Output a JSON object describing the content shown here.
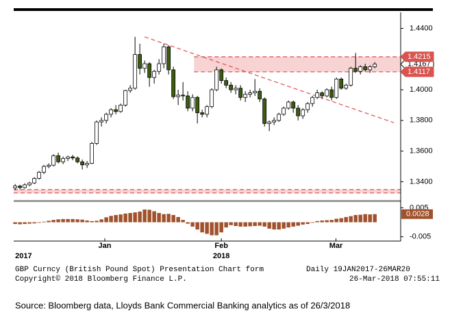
{
  "chart_data": {
    "type": "candlestick",
    "title": "GBP Curncy (British Pound Spot) Presentation Chart form",
    "subtitle": "Daily 19JAN2017-26MAR20",
    "copyright": "Copyright© 2018 Bloomberg Finance L.P.",
    "timestamp": "26-Mar-2018 07:55:11",
    "source": "Source: Bloomberg data, Lloyds Bank Commercial Banking analytics as of 26/3/2018",
    "open": [
      1.336,
      1.3372,
      1.3362,
      1.338,
      1.3392,
      1.3422,
      1.3462,
      1.35,
      1.3508,
      1.357,
      1.353,
      1.3552,
      1.3562,
      1.3555,
      1.353,
      1.351,
      1.352,
      1.365,
      1.379,
      1.38,
      1.384,
      1.387,
      1.3858,
      1.39,
      1.3995,
      1.401,
      1.423,
      1.414,
      1.417,
      1.408,
      1.412,
      1.417,
      1.428,
      1.413,
      1.3955,
      1.3965,
      1.396,
      1.388,
      1.395,
      1.385,
      1.384,
      1.389,
      1.4,
      1.413,
      1.406,
      1.403,
      1.4,
      1.401,
      1.395,
      1.397,
      1.398,
      1.399,
      1.394,
      1.378,
      1.379,
      1.38,
      1.384,
      1.388,
      1.392,
      1.388,
      1.383,
      1.387,
      1.391,
      1.395,
      1.398,
      1.396,
      1.4,
      1.395,
      1.407,
      1.401,
      1.403,
      1.414,
      1.412,
      1.415,
      1.413,
      1.415
    ],
    "high": [
      1.3385,
      1.338,
      1.339,
      1.34,
      1.343,
      1.347,
      1.351,
      1.352,
      1.358,
      1.359,
      1.3565,
      1.357,
      1.3575,
      1.3565,
      1.3545,
      1.3535,
      1.366,
      1.38,
      1.382,
      1.385,
      1.388,
      1.39,
      1.391,
      1.4,
      1.403,
      1.4345,
      1.43,
      1.419,
      1.418,
      1.413,
      1.42,
      1.43,
      1.429,
      1.415,
      1.4,
      1.405,
      1.399,
      1.397,
      1.396,
      1.387,
      1.39,
      1.401,
      1.415,
      1.414,
      1.408,
      1.405,
      1.403,
      1.403,
      1.399,
      1.4,
      1.407,
      1.401,
      1.395,
      1.38,
      1.382,
      1.385,
      1.389,
      1.393,
      1.393,
      1.39,
      1.388,
      1.392,
      1.396,
      1.4,
      1.399,
      1.401,
      1.402,
      1.408,
      1.408,
      1.404,
      1.415,
      1.424,
      1.416,
      1.417,
      1.416,
      1.418
    ],
    "low": [
      1.3345,
      1.335,
      1.3355,
      1.337,
      1.3385,
      1.3415,
      1.345,
      1.3488,
      1.35,
      1.352,
      1.3515,
      1.3535,
      1.354,
      1.352,
      1.348,
      1.349,
      1.3515,
      1.364,
      1.376,
      1.378,
      1.382,
      1.384,
      1.385,
      1.389,
      1.398,
      1.4,
      1.41,
      1.411,
      1.402,
      1.404,
      1.41,
      1.414,
      1.41,
      1.394,
      1.39,
      1.393,
      1.386,
      1.386,
      1.378,
      1.382,
      1.382,
      1.388,
      1.399,
      1.404,
      1.401,
      1.398,
      1.397,
      1.393,
      1.392,
      1.395,
      1.396,
      1.392,
      1.376,
      1.373,
      1.377,
      1.379,
      1.383,
      1.387,
      1.385,
      1.38,
      1.381,
      1.385,
      1.389,
      1.394,
      1.394,
      1.395,
      1.393,
      1.394,
      1.4,
      1.4,
      1.402,
      1.411,
      1.41,
      1.412,
      1.411,
      1.414
    ],
    "close": [
      1.3372,
      1.3362,
      1.338,
      1.3392,
      1.3422,
      1.3462,
      1.35,
      1.3508,
      1.357,
      1.353,
      1.3552,
      1.3562,
      1.3555,
      1.353,
      1.351,
      1.352,
      1.365,
      1.379,
      1.38,
      1.384,
      1.387,
      1.3858,
      1.39,
      1.3995,
      1.401,
      1.423,
      1.414,
      1.417,
      1.408,
      1.412,
      1.417,
      1.428,
      1.413,
      1.3955,
      1.3965,
      1.396,
      1.388,
      1.395,
      1.385,
      1.384,
      1.389,
      1.4,
      1.413,
      1.406,
      1.403,
      1.4,
      1.401,
      1.395,
      1.397,
      1.398,
      1.399,
      1.394,
      1.378,
      1.379,
      1.38,
      1.384,
      1.388,
      1.392,
      1.388,
      1.383,
      1.387,
      1.391,
      1.395,
      1.398,
      1.396,
      1.4,
      1.395,
      1.407,
      1.401,
      1.403,
      1.414,
      1.412,
      1.415,
      1.413,
      1.415,
      1.4167
    ],
    "up_color": "#ffffff",
    "down_color": "#3d5c12",
    "xlim": [
      -0.3,
      80.4
    ],
    "xticks": [
      {
        "value": 18.7,
        "label": "Jan"
      },
      {
        "value": 43,
        "label": "Feb"
      },
      {
        "value": 66.9,
        "label": "Mar"
      }
    ],
    "year_ticks": [
      {
        "value": 0,
        "label": "2017"
      },
      {
        "value": 43,
        "label": "2018"
      }
    ],
    "ylim": [
      1.329,
      1.4505
    ],
    "yticks": [
      {
        "value": 1.34,
        "label": "1.3400"
      },
      {
        "value": 1.36,
        "label": "1.3600"
      },
      {
        "value": 1.38,
        "label": "1.3800"
      },
      {
        "value": 1.4,
        "label": "1.4000"
      },
      {
        "value": 1.44,
        "label": "1.4400"
      }
    ],
    "bands": [
      {
        "from": 1.4117,
        "to": 1.4215,
        "start": 37.3
      },
      {
        "from": 1.3327,
        "to": 1.3349,
        "start": -0.3
      }
    ],
    "band_color": "#f7d3d3",
    "line_color": "#e05a5a",
    "trendline": {
      "x": [
        27,
        79
      ],
      "y": [
        1.4345,
        1.3785
      ]
    },
    "price_labels": [
      {
        "value": 1.4167,
        "color": "#ffffff"
      },
      {
        "value": 1.4215,
        "color": "#d9534f"
      },
      {
        "value": 1.4117,
        "color": "#d9534f"
      }
    ],
    "indicator": {
      "values": [
        -0.0006,
        -0.0007,
        -0.0006,
        -0.0005,
        -0.0004,
        -0.0002,
        0.0002,
        0.0005,
        0.0008,
        0.001,
        0.0011,
        0.0011,
        0.0011,
        0.001,
        0.0009,
        0.0006,
        0.0004,
        0.0005,
        0.001,
        0.0017,
        0.0022,
        0.0025,
        0.0027,
        0.003,
        0.0032,
        0.0034,
        0.0037,
        0.0044,
        0.0043,
        0.0038,
        0.0032,
        0.0028,
        0.0029,
        0.0025,
        0.0018,
        0.0008,
        -0.0005,
        -0.0015,
        -0.0025,
        -0.0035,
        -0.004,
        -0.0045,
        -0.0045,
        -0.0035,
        -0.0018,
        -0.001,
        -0.0013,
        -0.0015,
        -0.0015,
        -0.0014,
        -0.0013,
        -0.0012,
        -0.0015,
        -0.0022,
        -0.0025,
        -0.0025,
        -0.0022,
        -0.0018,
        -0.0015,
        -0.0012,
        -0.0008,
        -0.0006,
        -0.0002,
        0.0004,
        0.0006,
        0.0007,
        0.0008,
        0.0012,
        0.0014,
        0.0018,
        0.0021,
        0.0025,
        0.0026,
        0.0028,
        0.0027,
        0.0028
      ],
      "color": "#a0522d",
      "ylim": [
        -0.0065,
        0.0065
      ],
      "yticks": [
        0.005,
        -0.005
      ],
      "last_label": 0.0028
    }
  }
}
